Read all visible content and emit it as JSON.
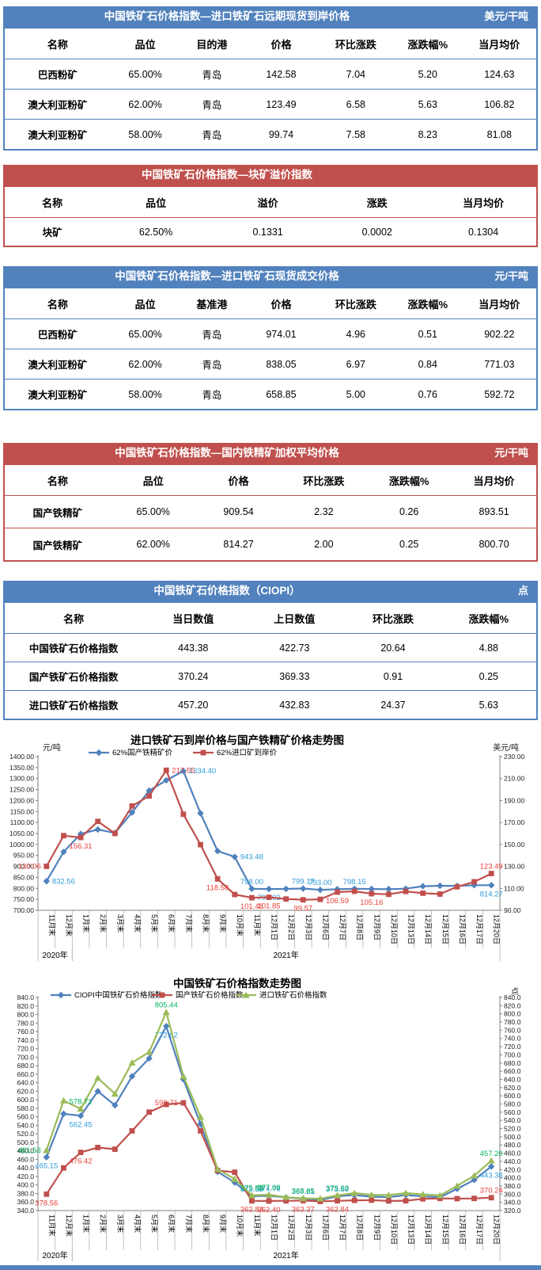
{
  "colors": {
    "blue": "#5282BD",
    "red": "#C0504D",
    "series_blue": "#4F81BD",
    "series_red": "#C0504D",
    "series_green": "#9BBB59",
    "label_blue": "#2F9BD8",
    "label_red": "#E8413C",
    "label_green": "#00B45A"
  },
  "tables": [
    {
      "theme": "blue",
      "title": "中国铁矿石价格指数—进口铁矿石远期现货到岸价格",
      "unit": "美元/干吨",
      "headers": [
        "名称",
        "品位",
        "目的港",
        "价格",
        "环比涨跌",
        "涨跌幅%",
        "当月均价"
      ],
      "rows": [
        [
          "巴西粉矿",
          "65.00%",
          "青岛",
          "142.58",
          "7.04",
          "5.20",
          "124.63"
        ],
        [
          "澳大利亚粉矿",
          "62.00%",
          "青岛",
          "123.49",
          "6.58",
          "5.63",
          "106.82"
        ],
        [
          "澳大利亚粉矿",
          "58.00%",
          "青岛",
          "99.74",
          "7.58",
          "8.23",
          "81.08"
        ]
      ]
    },
    {
      "theme": "red",
      "title": "中国铁矿石价格指数—块矿溢价指数",
      "unit": "",
      "headers": [
        "名称",
        "品位",
        "溢价",
        "涨跌",
        "当月均价"
      ],
      "rows": [
        [
          "块矿",
          "62.50%",
          "0.1331",
          "0.0002",
          "0.1304"
        ]
      ]
    },
    {
      "theme": "blue",
      "title": "中国铁矿石价格指数—进口铁矿石现货成交价格",
      "unit": "元/干吨",
      "headers": [
        "名称",
        "品位",
        "基准港",
        "价格",
        "环比涨跌",
        "涨跌幅%",
        "当月均价"
      ],
      "rows": [
        [
          "巴西粉矿",
          "65.00%",
          "青岛",
          "974.01",
          "4.96",
          "0.51",
          "902.22"
        ],
        [
          "澳大利亚粉矿",
          "62.00%",
          "青岛",
          "838.05",
          "6.97",
          "0.84",
          "771.03"
        ],
        [
          "澳大利亚粉矿",
          "58.00%",
          "青岛",
          "658.85",
          "5.00",
          "0.76",
          "592.72"
        ]
      ]
    },
    {
      "theme": "red",
      "title": "中国铁矿石价格指数—国内铁精矿加权平均价格",
      "unit": "元/干吨",
      "headers": [
        "名称",
        "品位",
        "价格",
        "环比涨跌",
        "涨跌幅%",
        "当月均价"
      ],
      "rows": [
        [
          "国产铁精矿",
          "65.00%",
          "909.54",
          "2.32",
          "0.26",
          "893.51"
        ],
        [
          "国产铁精矿",
          "62.00%",
          "814.27",
          "2.00",
          "0.25",
          "800.70"
        ]
      ]
    },
    {
      "theme": "blue",
      "title": "中国铁矿石价格指数（CIOPI）",
      "unit": "点",
      "headers": [
        "名称",
        "当日数值",
        "上日数值",
        "环比涨跌",
        "涨跌幅%"
      ],
      "rows": [
        [
          "中国铁矿石价格指数",
          "443.38",
          "422.73",
          "20.64",
          "4.88"
        ],
        [
          "国产铁矿石价格指数",
          "370.24",
          "369.33",
          "0.91",
          "0.25"
        ],
        [
          "进口铁矿石价格指数",
          "457.20",
          "432.83",
          "24.37",
          "5.63"
        ]
      ]
    }
  ],
  "chart_data": [
    {
      "type": "line",
      "title": "进口铁矿石到岸价格与国产铁精矿价格走势图",
      "y_left_unit": "元/吨",
      "y_right_unit": "美元/吨",
      "y_left": {
        "min": 700,
        "max": 1400,
        "step": 50,
        "decimals": 2
      },
      "y_right": {
        "min": 90,
        "max": 230,
        "step": 20,
        "decimals": 2
      },
      "grid": false,
      "legend_position": "top",
      "categories": [
        "11月末",
        "12月末",
        "1月末",
        "2月末",
        "3月末",
        "4月末",
        "5月末",
        "6月末",
        "7月末",
        "8月末",
        "9月末",
        "10月末",
        "11月末",
        "12月1日",
        "12月2日",
        "12月3日",
        "12月6日",
        "12月7日",
        "12月8日",
        "12月9日",
        "12月10日",
        "12月13日",
        "12月14日",
        "12月15日",
        "12月16日",
        "12月17日",
        "12月20日"
      ],
      "year_groups": [
        {
          "label": "2020年",
          "from": 0,
          "to": 1
        },
        {
          "label": "2021年",
          "from": 2,
          "to": 26
        }
      ],
      "series": [
        {
          "name": "62%国产铁精矿价",
          "marker": "diamond",
          "axis": "left",
          "color": "#4F81BD",
          "label_color": "#2F9BD8",
          "values": [
            832.56,
            966,
            1048,
            1068,
            1052,
            1146,
            1245,
            1292,
            1334.4,
            1142,
            970,
            943.48,
            798.0,
            797.03,
            797.6,
            799.17,
            793.0,
            796,
            798.15,
            797.2,
            796.5,
            798.4,
            809.8,
            812,
            811,
            814.5,
            814.27
          ],
          "labels": [
            {
              "i": 0,
              "t": "832.56",
              "pos": "right"
            },
            {
              "i": 8,
              "t": "1334.40",
              "pos": "right"
            },
            {
              "i": 11,
              "t": "943.48",
              "pos": "right"
            },
            {
              "i": 12,
              "t": "798.00",
              "pos": "above"
            },
            {
              "i": 13,
              "t": "797.03",
              "pos": "below"
            },
            {
              "i": 15,
              "t": "799.17",
              "pos": "above"
            },
            {
              "i": 16,
              "t": "793.00",
              "pos": "above"
            },
            {
              "i": 18,
              "t": "798.15",
              "pos": "above"
            },
            {
              "i": 26,
              "t": "814.27",
              "pos": "below"
            }
          ]
        },
        {
          "name": "62%进口矿到岸价",
          "marker": "square",
          "axis": "right",
          "color": "#C0504D",
          "label_color": "#E8413C",
          "values": [
            130.06,
            158,
            156.31,
            171,
            160,
            185,
            194.2,
            217.55,
            177.5,
            149.8,
            118.58,
            104.4,
            101.46,
            101.85,
            100.3,
            99.57,
            100.0,
            106.59,
            107.3,
            105.16,
            104.6,
            107.2,
            105.6,
            104.8,
            111.4,
            116,
            123.49
          ],
          "labels": [
            {
              "i": 0,
              "t": "130.06",
              "pos": "left"
            },
            {
              "i": 2,
              "t": "156.31",
              "pos": "below"
            },
            {
              "i": 7,
              "t": "217.55",
              "pos": "right"
            },
            {
              "i": 10,
              "t": "118.58",
              "pos": "below"
            },
            {
              "i": 12,
              "t": "101.46",
              "pos": "below"
            },
            {
              "i": 13,
              "t": "101.85",
              "pos": "below"
            },
            {
              "i": 15,
              "t": "99.57",
              "pos": "below"
            },
            {
              "i": 17,
              "t": "106.59",
              "pos": "below"
            },
            {
              "i": 19,
              "t": "105.16",
              "pos": "below"
            },
            {
              "i": 26,
              "t": "123.49",
              "pos": "above"
            }
          ]
        }
      ]
    },
    {
      "type": "line",
      "title": "中国铁矿石价格指数走势图",
      "y_left_unit": "",
      "y_right_unit": "点",
      "y_left": {
        "min": 340,
        "max": 840,
        "step": 20,
        "decimals": 1
      },
      "y_right": {
        "min": 320,
        "max": 840,
        "step": 20,
        "decimals": 1
      },
      "grid": false,
      "legend_position": "top",
      "categories": [
        "11月末",
        "12月末",
        "1月末",
        "2月末",
        "3月末",
        "4月末",
        "5月末",
        "6月末",
        "7月末",
        "8月末",
        "9月末",
        "10月末",
        "11月末",
        "12月1日",
        "12月2日",
        "12月3日",
        "12月6日",
        "12月7日",
        "12月8日",
        "12月9日",
        "12月10日",
        "12月13日",
        "12月14日",
        "12月15日",
        "12月16日",
        "12月17日",
        "12月20日"
      ],
      "year_groups": [
        {
          "label": "2020年",
          "from": 0,
          "to": 1
        },
        {
          "label": "2021年",
          "from": 2,
          "to": 26
        }
      ],
      "series": [
        {
          "name": "CIOPI中国铁矿石价格指数",
          "marker": "diamond",
          "axis": "left",
          "color": "#4F81BD",
          "label_color": "#2F9BD8",
          "values": [
            465.15,
            567,
            562.45,
            620,
            587,
            655,
            697,
            772.62,
            648,
            543,
            431,
            406,
            373.59,
            374.76,
            371,
            367.81,
            364.5,
            373.59,
            376.5,
            372.5,
            371.5,
            376.5,
            373,
            371.5,
            391,
            412,
            443.38
          ],
          "labels": [
            {
              "i": 0,
              "t": "465.15",
              "pos": "below"
            },
            {
              "i": 2,
              "t": "562.45",
              "pos": "below"
            },
            {
              "i": 7,
              "t": "772.62",
              "pos": "below"
            },
            {
              "i": 12,
              "t": "373.59",
              "pos": "above"
            },
            {
              "i": 13,
              "t": "374.76",
              "pos": "above"
            },
            {
              "i": 15,
              "t": "367.81",
              "pos": "above"
            },
            {
              "i": 17,
              "t": "373.59",
              "pos": "above"
            },
            {
              "i": 26,
              "t": "443.38",
              "pos": "below"
            }
          ]
        },
        {
          "name": "国产铁矿石价格指数",
          "marker": "square",
          "axis": "left",
          "color": "#C0504D",
          "label_color": "#E8413C",
          "values": [
            378.56,
            440,
            476.42,
            488,
            484,
            527,
            571,
            589,
            592.71,
            527,
            434,
            430,
            362.84,
            362.4,
            362.8,
            363.37,
            361.5,
            362.84,
            364,
            364.5,
            362.5,
            363,
            367.5,
            368.5,
            368,
            368.5,
            370.24
          ],
          "labels": [
            {
              "i": 0,
              "t": "378.56",
              "pos": "below"
            },
            {
              "i": 2,
              "t": "476.42",
              "pos": "below"
            },
            {
              "i": 8,
              "t": "592.71",
              "pos": "left"
            },
            {
              "i": 12,
              "t": "362.84",
              "pos": "below"
            },
            {
              "i": 13,
              "t": "362.40",
              "pos": "below"
            },
            {
              "i": 15,
              "t": "363.37",
              "pos": "below"
            },
            {
              "i": 17,
              "t": "362.84",
              "pos": "below"
            },
            {
              "i": 26,
              "t": "370.24",
              "pos": "above"
            }
          ]
        },
        {
          "name": "进口铁矿石价格指数",
          "marker": "triangle",
          "axis": "left",
          "color": "#9BBB59",
          "label_color": "#00B45A",
          "values": [
            481.53,
            598,
            578.71,
            651,
            614,
            687,
            712,
            805.44,
            655,
            560,
            437,
            414,
            375.83,
            377.09,
            371.5,
            368.65,
            368,
            375.63,
            381,
            377,
            376.5,
            381,
            378,
            375.5,
            398,
            422,
            457.2
          ],
          "labels": [
            {
              "i": 0,
              "t": "481.53",
              "pos": "left"
            },
            {
              "i": 2,
              "t": "578.71",
              "pos": "above"
            },
            {
              "i": 7,
              "t": "805.44",
              "pos": "above"
            },
            {
              "i": 12,
              "t": "375.83",
              "pos": "above"
            },
            {
              "i": 13,
              "t": "377.09",
              "pos": "above"
            },
            {
              "i": 15,
              "t": "368.65",
              "pos": "above"
            },
            {
              "i": 17,
              "t": "375.63",
              "pos": "above"
            },
            {
              "i": 26,
              "t": "457.20",
              "pos": "above"
            }
          ]
        }
      ]
    }
  ]
}
